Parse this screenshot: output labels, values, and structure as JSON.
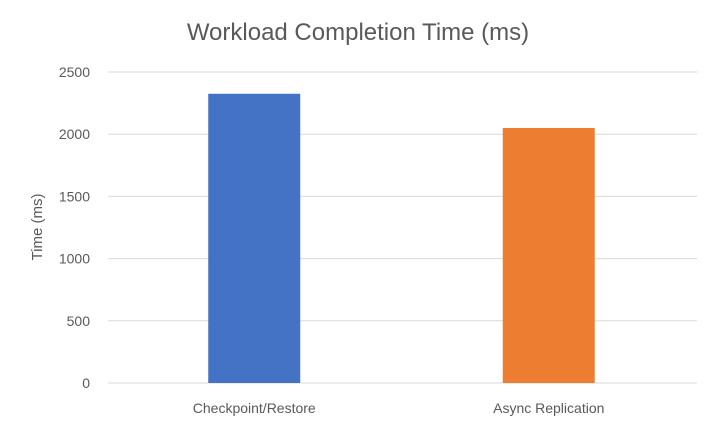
{
  "chart_data": {
    "type": "bar",
    "title": "Workload Completion Time (ms)",
    "xlabel": "",
    "ylabel": "Time (ms)",
    "categories": [
      "Checkpoint/Restore",
      "Async Replication"
    ],
    "values": [
      2325,
      2050
    ],
    "ylim": [
      0,
      2500
    ],
    "yticks": [
      0,
      500,
      1000,
      1500,
      2000,
      2500
    ],
    "grid": true,
    "legend": "none",
    "colors": [
      "#4472C4",
      "#ED7D31"
    ]
  }
}
